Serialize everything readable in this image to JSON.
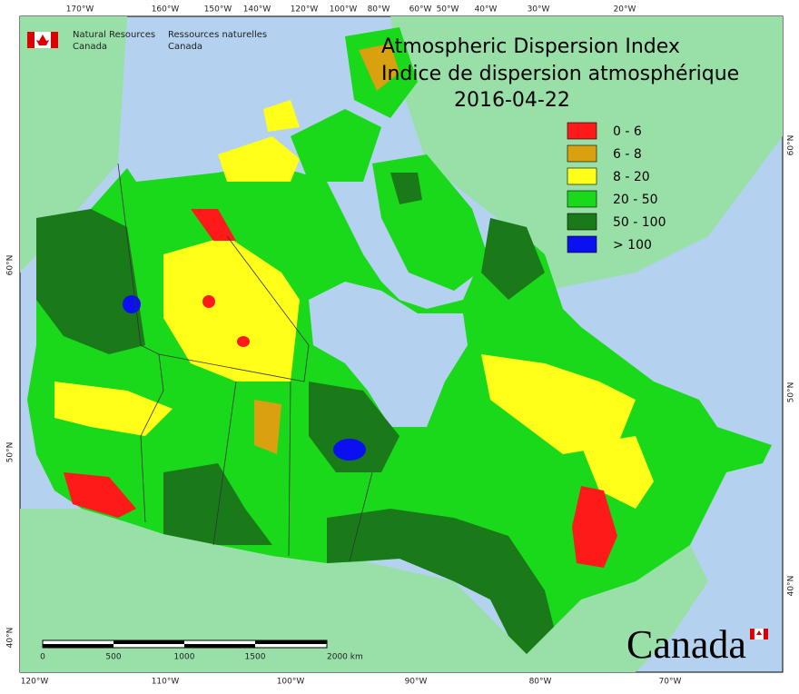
{
  "header": {
    "agency_en": [
      "Natural Resources",
      "Canada"
    ],
    "agency_fr": [
      "Ressources naturelles",
      "Canada"
    ]
  },
  "title": {
    "en": "Atmospheric Dispersion Index",
    "fr": "Indice de dispersion atmosphérique",
    "date": "2016-04-22"
  },
  "legend": [
    {
      "label": "0 - 6",
      "color": "#ff1a1a"
    },
    {
      "label": "6 - 8",
      "color": "#d9a010"
    },
    {
      "label": "8 - 20",
      "color": "#ffff1a"
    },
    {
      "label": "20 - 50",
      "color": "#1ad81a"
    },
    {
      "label": "50 - 100",
      "color": "#1a7a1a"
    },
    {
      "label": "> 100",
      "color": "#0a10f0"
    }
  ],
  "top_labels": [
    "170°W",
    "160°W",
    "150°W",
    "140°W",
    "120°W",
    "100°W",
    "80°W",
    "60°W",
    "50°W",
    "40°W",
    "30°W",
    "20°W"
  ],
  "bottom_labels": [
    "120°W",
    "110°W",
    "100°W",
    "90°W",
    "80°W",
    "70°W"
  ],
  "left_labels": [
    "60°N",
    "50°N",
    "40°N"
  ],
  "right_labels": [
    "60°N",
    "50°N",
    "40°N"
  ],
  "scale": [
    "0",
    "500",
    "1000",
    "1500",
    "2000 km"
  ],
  "wordmark": "Canada"
}
